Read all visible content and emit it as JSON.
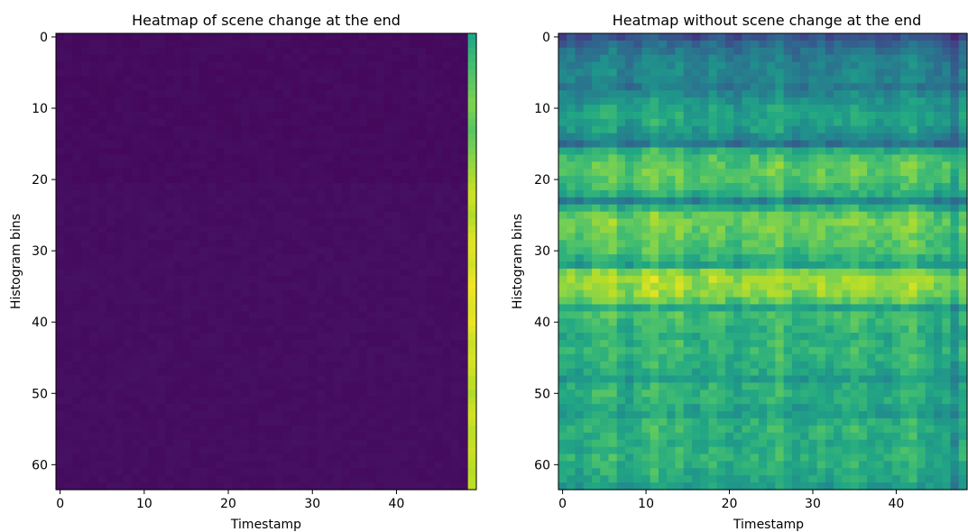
{
  "chart_data": [
    {
      "type": "heatmap",
      "title": "Heatmap of scene change at the end",
      "xlabel": "Timestamp",
      "ylabel": "Histogram bins",
      "rows": 64,
      "cols": 50,
      "xlim": [
        -0.5,
        49.5
      ],
      "ylim": [
        63.5,
        -0.5
      ],
      "xticks": [
        0,
        10,
        20,
        30,
        40
      ],
      "yticks": [
        0,
        10,
        20,
        30,
        40,
        50,
        60
      ],
      "colormap": "viridis",
      "description": "All columns 0-48 near minimum (dark purple); last column (49) near maximum (green-yellow).",
      "column_levels": {
        "0-48": 0.03,
        "49": 0.9
      },
      "last_column_levels": [
        0.6,
        0.62,
        0.65,
        0.68,
        0.7,
        0.72,
        0.74,
        0.76,
        0.78,
        0.8,
        0.8,
        0.78,
        0.76,
        0.74,
        0.76,
        0.78,
        0.8,
        0.82,
        0.84,
        0.86,
        0.88,
        0.9,
        0.92,
        0.92,
        0.9,
        0.88,
        0.9,
        0.92,
        0.94,
        0.95,
        0.95,
        0.94,
        0.93,
        0.95,
        0.97,
        0.98,
        0.97,
        0.96,
        0.95,
        0.96,
        0.97,
        0.95,
        0.93,
        0.92,
        0.93,
        0.94,
        0.93,
        0.92,
        0.9,
        0.9,
        0.88,
        0.9,
        0.92,
        0.93,
        0.92,
        0.9,
        0.9,
        0.91,
        0.92,
        0.91,
        0.9,
        0.89,
        0.9,
        0.9
      ]
    },
    {
      "type": "heatmap",
      "title": "Heatmap without scene change at the end",
      "xlabel": "Timestamp",
      "ylabel": "Histogram bins",
      "rows": 64,
      "cols": 49,
      "xlim": [
        -0.5,
        48.5
      ],
      "ylim": [
        63.5,
        -0.5
      ],
      "xticks": [
        0,
        10,
        20,
        30,
        40
      ],
      "yticks": [
        0,
        10,
        20,
        30,
        40,
        50,
        60
      ],
      "colormap": "viridis",
      "row_levels": [
        0.22,
        0.3,
        0.36,
        0.4,
        0.42,
        0.44,
        0.42,
        0.38,
        0.44,
        0.5,
        0.54,
        0.56,
        0.55,
        0.52,
        0.46,
        0.36,
        0.6,
        0.68,
        0.72,
        0.72,
        0.7,
        0.66,
        0.6,
        0.42,
        0.6,
        0.72,
        0.76,
        0.74,
        0.72,
        0.7,
        0.68,
        0.62,
        0.56,
        0.78,
        0.84,
        0.82,
        0.8,
        0.72,
        0.56,
        0.66,
        0.64,
        0.62,
        0.6,
        0.62,
        0.64,
        0.62,
        0.6,
        0.58,
        0.52,
        0.6,
        0.62,
        0.6,
        0.56,
        0.54,
        0.6,
        0.62,
        0.6,
        0.58,
        0.6,
        0.62,
        0.6,
        0.58,
        0.56,
        0.52
      ],
      "column_offsets": [
        0.0,
        0.02,
        -0.02,
        0.03,
        0.05,
        0.06,
        0.08,
        0.0,
        -0.02,
        0.02,
        0.06,
        0.1,
        0.06,
        0.04,
        0.08,
        0.02,
        0.0,
        0.02,
        0.06,
        0.04,
        0.0,
        -0.02,
        0.02,
        0.04,
        0.02,
        0.06,
        0.08,
        0.02,
        -0.02,
        0.0,
        0.02,
        0.04,
        0.0,
        0.02,
        0.04,
        0.06,
        0.04,
        0.02,
        0.0,
        0.0,
        0.02,
        0.06,
        0.08,
        0.02,
        0.0,
        -0.04,
        0.0,
        -0.1,
        0.02
      ]
    }
  ]
}
